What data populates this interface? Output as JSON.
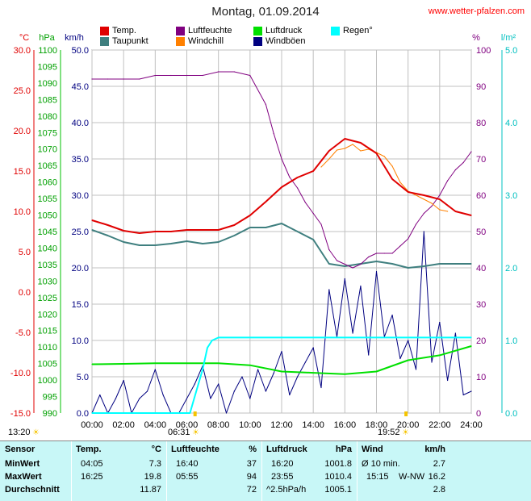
{
  "header": {
    "title": "Montag, 01.09.2014",
    "site": "www.wetter-pfalzen.com"
  },
  "legend": [
    {
      "label": "Temp.",
      "color": "#e00000"
    },
    {
      "label": "Taupunkt",
      "color": "#3f7f7f"
    },
    {
      "label": "Luftfeuchte",
      "color": "#800080"
    },
    {
      "label": "Windchill",
      "color": "#ff8000"
    },
    {
      "label": "Luftdruck",
      "color": "#00e000"
    },
    {
      "label": "Windböen",
      "color": "#000080"
    },
    {
      "label": "Regen°",
      "color": "#00ffff"
    }
  ],
  "axis_units": {
    "temp": "°C",
    "hpa": "hPa",
    "kmh": "km/h",
    "pct": "%",
    "rain": "l/m²"
  },
  "chart_data": {
    "type": "line",
    "x_ticks": [
      "00:00",
      "02:00",
      "04:00",
      "06:00",
      "08:00",
      "10:00",
      "12:00",
      "14:00",
      "16:00",
      "18:00",
      "20:00",
      "22:00",
      "24:00"
    ],
    "x_range_hours": [
      0,
      24
    ],
    "axes": {
      "temp_c": {
        "range": [
          -15,
          30
        ],
        "ticks": [
          "30.0",
          "25.0",
          "20.0",
          "15.0",
          "10.0",
          "5.0",
          "0.0",
          "-5.0",
          "-10.0",
          "-15.0"
        ]
      },
      "pressure_hpa": {
        "range": [
          990,
          1100
        ],
        "ticks": [
          "1100",
          "1095",
          "1090",
          "1085",
          "1080",
          "1075",
          "1070",
          "1065",
          "1060",
          "1055",
          "1050",
          "1045",
          "1040",
          "1035",
          "1030",
          "1025",
          "1020",
          "1015",
          "1010",
          "1005",
          "1000",
          "995",
          "990"
        ]
      },
      "wind_kmh": {
        "range": [
          0,
          50
        ],
        "ticks": [
          "50.0",
          "45.0",
          "40.0",
          "35.0",
          "30.0",
          "25.0",
          "20.0",
          "15.0",
          "10.0",
          "5.0",
          "0.0"
        ]
      },
      "humidity_pct": {
        "range": [
          0,
          100
        ],
        "ticks": [
          "100",
          "90",
          "80",
          "70",
          "60",
          "50",
          "40",
          "30",
          "20",
          "10",
          "0"
        ]
      },
      "rain_lm2": {
        "range": [
          0,
          5
        ],
        "ticks": [
          "5.0",
          "4.0",
          "3.0",
          "2.0",
          "1.0",
          "0.0"
        ]
      }
    },
    "series": [
      {
        "name": "Temp.",
        "axis": "temp_c",
        "color": "#e00000",
        "x": [
          0,
          1,
          2,
          3,
          4,
          5,
          6,
          7,
          8,
          9,
          10,
          11,
          12,
          13,
          14,
          15,
          16,
          17,
          18,
          19,
          20,
          21,
          22,
          23,
          24
        ],
        "y": [
          8.9,
          8.3,
          7.6,
          7.3,
          7.5,
          7.5,
          7.7,
          7.7,
          7.7,
          8.3,
          9.5,
          11.2,
          13.0,
          14.2,
          15.0,
          17.5,
          19.0,
          18.5,
          17.2,
          14.0,
          12.4,
          12.0,
          11.5,
          10.0,
          9.5
        ]
      },
      {
        "name": "Taupunkt",
        "axis": "temp_c",
        "color": "#3f7f7f",
        "x": [
          0,
          1,
          2,
          3,
          4,
          5,
          6,
          7,
          8,
          9,
          10,
          11,
          12,
          13,
          14,
          15,
          16,
          17,
          18,
          19,
          20,
          21,
          22,
          23,
          24
        ],
        "y": [
          7.7,
          7.0,
          6.2,
          5.8,
          5.8,
          6.0,
          6.3,
          6.0,
          6.2,
          7.0,
          8.0,
          8.0,
          8.5,
          7.5,
          6.5,
          3.5,
          3.2,
          3.5,
          3.8,
          3.5,
          3.0,
          3.2,
          3.5,
          3.5,
          3.5
        ]
      },
      {
        "name": "Windchill",
        "axis": "temp_c",
        "color": "#ff8000",
        "x": [
          14.5,
          15,
          15.5,
          16,
          16.5,
          17,
          17.5,
          18,
          18.5,
          19,
          19.5,
          20,
          20.5,
          21,
          21.5,
          22,
          22.5
        ],
        "y": [
          15.5,
          16.5,
          17.6,
          17.8,
          18.3,
          17.5,
          17.7,
          17.3,
          16.8,
          15.6,
          13.6,
          12.5,
          12.0,
          11.5,
          11.0,
          10.2,
          10.0
        ]
      },
      {
        "name": "Luftfeuchte",
        "axis": "humidity_pct",
        "color": "#800080",
        "x": [
          0,
          1,
          2,
          3,
          4,
          5,
          6,
          7,
          8,
          9,
          10,
          11,
          11.5,
          12,
          12.5,
          13,
          13.5,
          14,
          14.5,
          15,
          15.5,
          16,
          16.5,
          17,
          17.5,
          18,
          18.5,
          19,
          19.5,
          20,
          20.5,
          21,
          21.5,
          22,
          22.5,
          23,
          23.5,
          24
        ],
        "y": [
          92,
          92,
          92,
          92,
          93,
          93,
          93,
          93,
          94,
          94,
          93,
          85,
          77,
          70,
          65,
          62,
          58,
          55,
          52,
          45,
          42,
          41,
          40,
          41,
          43,
          44,
          44,
          44,
          46,
          48,
          52,
          55,
          57,
          60,
          64,
          67,
          69,
          72
        ]
      },
      {
        "name": "Luftdruck",
        "axis": "pressure_hpa",
        "color": "#00e000",
        "x": [
          0,
          2,
          4,
          6,
          8,
          10,
          12,
          14,
          16,
          18,
          20,
          22,
          24
        ],
        "y": [
          1004.8,
          1004.9,
          1005.1,
          1005.1,
          1005.1,
          1004.5,
          1002.6,
          1002.2,
          1001.8,
          1002.6,
          1006.0,
          1007.5,
          1010.3
        ]
      },
      {
        "name": "Regen°",
        "axis": "rain_lm2",
        "color": "#00ffff",
        "x": [
          0,
          6.2,
          6.6,
          7.0,
          7.3,
          7.6,
          8.0,
          10,
          12,
          14,
          16,
          18,
          20,
          22,
          24
        ],
        "y": [
          0,
          0,
          0.3,
          0.6,
          0.9,
          1.0,
          1.04,
          1.04,
          1.04,
          1.04,
          1.04,
          1.04,
          1.04,
          1.04,
          1.04
        ]
      },
      {
        "name": "Windböen",
        "axis": "wind_kmh",
        "color": "#000080",
        "x": [
          0,
          0.5,
          1,
          1.5,
          2,
          2.5,
          3,
          3.5,
          4,
          4.5,
          5,
          5.5,
          6,
          6.5,
          7,
          7.5,
          8,
          8.5,
          9,
          9.5,
          10,
          10.5,
          11,
          11.5,
          12,
          12.5,
          13,
          13.5,
          14,
          14.5,
          15,
          15.5,
          16,
          16.5,
          17,
          17.5,
          18,
          18.5,
          19,
          19.5,
          20,
          20.5,
          21,
          21.5,
          22,
          22.5,
          23,
          23.5,
          24
        ],
        "y": [
          0,
          2.5,
          0,
          2.0,
          4.5,
          0,
          2.0,
          3.0,
          6.0,
          2.5,
          0,
          0,
          2.0,
          4.0,
          6.5,
          2.0,
          4.0,
          0,
          3.0,
          5.0,
          2.0,
          6.0,
          3.0,
          5.5,
          8.5,
          2.5,
          5.0,
          7.0,
          9.0,
          3.5,
          17.0,
          10.5,
          18.5,
          11.0,
          17.5,
          8.0,
          19.5,
          10.5,
          13.5,
          7.5,
          10.0,
          6.0,
          25.0,
          7.0,
          12.5,
          4.5,
          11.0,
          2.5,
          3.0
        ]
      }
    ],
    "annotations": [
      "13:20",
      "06:31",
      "19:52"
    ]
  },
  "table": {
    "headers": {
      "sensor": "Sensor",
      "temp": "Temp.",
      "temp_unit": "°C",
      "hum": "Luftfeuchte",
      "hum_unit": "%",
      "press": "Luftdruck",
      "press_unit": "hPa",
      "wind": "Wind",
      "wind_unit": "km/h"
    },
    "rows": [
      {
        "label": "MinWert",
        "t_time": "04:05",
        "t_val": "7.3",
        "h_time": "16:40",
        "h_val": "37",
        "p_time": "16:20",
        "p_val": "1001.8",
        "w_time": "Ø 10 min.",
        "w_dir": "",
        "w_val": "2.7"
      },
      {
        "label": "MaxWert",
        "t_time": "16:25",
        "t_val": "19.8",
        "h_time": "05:55",
        "h_val": "94",
        "p_time": "23:55",
        "p_val": "1010.4",
        "w_time": "15:15",
        "w_dir": "W-NW",
        "w_val": "16.2"
      },
      {
        "label": "Durchschnitt",
        "t_time": "",
        "t_val": "11.87",
        "h_time": "",
        "h_val": "72",
        "p_time": "^2.5hPa/h",
        "p_val": "1005.1",
        "w_time": "",
        "w_dir": "",
        "w_val": "2.8"
      }
    ]
  }
}
